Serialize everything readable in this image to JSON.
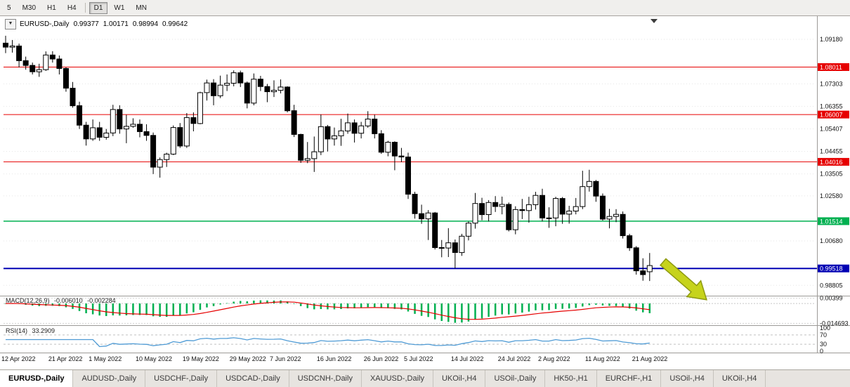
{
  "toolbar": {
    "timeframes": [
      "5",
      "M30",
      "H1",
      "H4",
      "D1",
      "W1",
      "MN"
    ],
    "active": "D1"
  },
  "header": {
    "dropdown_icon": "▼",
    "symbol": "EURUSD-,Daily",
    "open": "0.99377",
    "high": "1.00171",
    "low": "0.98994",
    "close": "0.99642"
  },
  "colors": {
    "resistance": "#e60000",
    "support_green": "#00b050",
    "support_blue": "#0000b4",
    "macd_histogram": "#00b050",
    "macd_signal": "#e60000",
    "rsi_line": "#4f9bd5",
    "bull": "#ffffff",
    "bear": "#000000",
    "grid": "#e6e6e6"
  },
  "objects": {
    "arrow": {
      "type": "arrow",
      "direction": "down-right",
      "color": "#c6d31c"
    }
  },
  "chart_data": {
    "type": "candlestick",
    "title": "EURUSD-,Daily",
    "symbol": "EURUSD-",
    "timeframe": "Daily",
    "ylim": [
      0.984,
      1.0995
    ],
    "price_ticks": [
      {
        "label": "1.09180",
        "value": 1.0918
      },
      {
        "label": "1.07303",
        "value": 1.07303
      },
      {
        "label": "1.06355",
        "value": 1.06355
      },
      {
        "label": "1.05407",
        "value": 1.05407
      },
      {
        "label": "1.04455",
        "value": 1.04455
      },
      {
        "label": "1.03505",
        "value": 1.03505
      },
      {
        "label": "1.02580",
        "value": 1.0258
      },
      {
        "label": "1.00680",
        "value": 1.0068
      },
      {
        "label": "0.98805",
        "value": 0.98805
      }
    ],
    "hlines": [
      {
        "value": 1.08011,
        "label": "1.08011",
        "kind": "resistance"
      },
      {
        "value": 1.06007,
        "label": "1.06007",
        "kind": "resistance"
      },
      {
        "value": 1.04016,
        "label": "1.04016",
        "kind": "resistance"
      },
      {
        "value": 1.01514,
        "label": "1.01514",
        "kind": "support_green"
      },
      {
        "value": 0.99518,
        "label": "0.99518",
        "kind": "support_blue"
      }
    ],
    "date_ticks": [
      {
        "bar": 0,
        "label": "12 Apr 2022"
      },
      {
        "bar": 7,
        "label": "21 Apr 2022"
      },
      {
        "bar": 13,
        "label": "1 May 2022"
      },
      {
        "bar": 20,
        "label": "10 May 2022"
      },
      {
        "bar": 27,
        "label": "19 May 2022"
      },
      {
        "bar": 34,
        "label": "29 May 2022"
      },
      {
        "bar": 40,
        "label": "7 Jun 2022"
      },
      {
        "bar": 47,
        "label": "16 Jun 2022"
      },
      {
        "bar": 54,
        "label": "26 Jun 2022"
      },
      {
        "bar": 60,
        "label": "5 Jul 2022"
      },
      {
        "bar": 67,
        "label": "14 Jul 2022"
      },
      {
        "bar": 74,
        "label": "24 Jul 2022"
      },
      {
        "bar": 80,
        "label": "2 Aug 2022"
      },
      {
        "bar": 87,
        "label": "11 Aug 2022"
      },
      {
        "bar": 94,
        "label": "21 Aug 2022"
      }
    ],
    "candles": [
      [
        1.0902,
        1.0933,
        1.086,
        1.0885
      ],
      [
        1.0885,
        1.0915,
        1.0862,
        1.089
      ],
      [
        1.089,
        1.09,
        1.08,
        1.0828
      ],
      [
        1.0828,
        1.0845,
        1.079,
        1.0808
      ],
      [
        1.0808,
        1.082,
        1.077,
        1.0781
      ],
      [
        1.0781,
        1.0815,
        1.076,
        1.079
      ],
      [
        1.079,
        1.0867,
        1.0785,
        1.0852
      ],
      [
        1.0852,
        1.0868,
        1.082,
        1.0835
      ],
      [
        1.0835,
        1.085,
        1.077,
        1.0795
      ],
      [
        1.0795,
        1.08,
        1.0697,
        1.0712
      ],
      [
        1.0712,
        1.0738,
        1.063,
        1.0638
      ],
      [
        1.0638,
        1.0655,
        1.054,
        1.0556
      ],
      [
        1.0556,
        1.057,
        1.047,
        1.0498
      ],
      [
        1.0498,
        1.058,
        1.049,
        1.0545
      ],
      [
        1.0545,
        1.057,
        1.049,
        1.0505
      ],
      [
        1.0505,
        1.054,
        1.0495,
        1.0523
      ],
      [
        1.0523,
        1.0642,
        1.051,
        1.0622
      ],
      [
        1.0622,
        1.064,
        1.052,
        1.054
      ],
      [
        1.054,
        1.06,
        1.048,
        1.0551
      ],
      [
        1.0551,
        1.0585,
        1.0545,
        1.056
      ],
      [
        1.056,
        1.058,
        1.0505,
        1.0529
      ],
      [
        1.0529,
        1.056,
        1.049,
        1.0513
      ],
      [
        1.0513,
        1.0525,
        1.035,
        1.0379
      ],
      [
        1.0379,
        1.042,
        1.0335,
        1.0411
      ],
      [
        1.0411,
        1.044,
        1.038,
        1.0434
      ],
      [
        1.0434,
        1.0555,
        1.043,
        1.0546
      ],
      [
        1.0546,
        1.0565,
        1.046,
        1.0468
      ],
      [
        1.0468,
        1.0607,
        1.046,
        1.0588
      ],
      [
        1.0588,
        1.061,
        1.053,
        1.0563
      ],
      [
        1.0563,
        1.0697,
        1.056,
        1.0693
      ],
      [
        1.0693,
        1.0748,
        1.066,
        1.0734
      ],
      [
        1.0734,
        1.075,
        1.064,
        1.068
      ],
      [
        1.068,
        1.0765,
        1.067,
        1.0725
      ],
      [
        1.0725,
        1.077,
        1.07,
        1.0733
      ],
      [
        1.0733,
        1.0787,
        1.072,
        1.0777
      ],
      [
        1.0777,
        1.0786,
        1.0717,
        1.0734
      ],
      [
        1.0734,
        1.074,
        1.0627,
        1.0649
      ],
      [
        1.0649,
        1.0774,
        1.064,
        1.075
      ],
      [
        1.075,
        1.0764,
        1.07,
        1.0719
      ],
      [
        1.0719,
        1.073,
        1.0653,
        1.0697
      ],
      [
        1.0697,
        1.0745,
        1.0675,
        1.0703
      ],
      [
        1.0703,
        1.0749,
        1.069,
        1.0717
      ],
      [
        1.0717,
        1.072,
        1.061,
        1.0617
      ],
      [
        1.0617,
        1.0642,
        1.0506,
        1.0517
      ],
      [
        1.0517,
        1.052,
        1.0397,
        1.0408
      ],
      [
        1.0408,
        1.0485,
        1.0396,
        1.0415
      ],
      [
        1.0415,
        1.0508,
        1.0359,
        1.0444
      ],
      [
        1.0444,
        1.0601,
        1.043,
        1.055
      ],
      [
        1.055,
        1.0557,
        1.0445,
        1.0498
      ],
      [
        1.0498,
        1.0546,
        1.047,
        1.0511
      ],
      [
        1.0511,
        1.0583,
        1.0469,
        1.0532
      ],
      [
        1.0532,
        1.0605,
        1.052,
        1.0566
      ],
      [
        1.0566,
        1.058,
        1.0483,
        1.0522
      ],
      [
        1.0522,
        1.057,
        1.05,
        1.0553
      ],
      [
        1.0553,
        1.0615,
        1.0545,
        1.0582
      ],
      [
        1.0582,
        1.06,
        1.05,
        1.052
      ],
      [
        1.052,
        1.0535,
        1.0435,
        1.0442
      ],
      [
        1.0442,
        1.049,
        1.0425,
        1.0484
      ],
      [
        1.0484,
        1.0488,
        1.0366,
        1.0426
      ],
      [
        1.0426,
        1.046,
        1.04,
        1.0422
      ],
      [
        1.0422,
        1.044,
        1.0245,
        1.0265
      ],
      [
        1.0265,
        1.0275,
        1.0162,
        1.0183
      ],
      [
        1.0183,
        1.0221,
        1.014,
        1.0161
      ],
      [
        1.0161,
        1.0198,
        1.0072,
        1.0186
      ],
      [
        1.0186,
        1.019,
        1.0032,
        1.004
      ],
      [
        1.004,
        1.0072,
        0.9999,
        1.0038
      ],
      [
        1.0038,
        1.0122,
        1.0,
        1.006
      ],
      [
        1.006,
        1.0074,
        0.9952,
        1.0019
      ],
      [
        1.0019,
        1.0098,
        1.0005,
        1.0088
      ],
      [
        1.0088,
        1.015,
        1.007,
        1.0143
      ],
      [
        1.0143,
        1.027,
        1.012,
        1.0226
      ],
      [
        1.0226,
        1.025,
        1.0155,
        1.0179
      ],
      [
        1.0179,
        1.024,
        1.015,
        1.023
      ],
      [
        1.023,
        1.0257,
        1.019,
        1.0213
      ],
      [
        1.0213,
        1.0255,
        1.018,
        1.0222
      ],
      [
        1.0222,
        1.023,
        1.0108,
        1.0115
      ],
      [
        1.0115,
        1.0214,
        1.0096,
        1.02
      ],
      [
        1.02,
        1.0245,
        1.016,
        1.0196
      ],
      [
        1.0196,
        1.0254,
        1.0145,
        1.0221
      ],
      [
        1.0221,
        1.0275,
        1.02,
        1.026
      ],
      [
        1.026,
        1.0288,
        1.015,
        1.0165
      ],
      [
        1.0165,
        1.021,
        1.0123,
        1.0165
      ],
      [
        1.0165,
        1.0254,
        1.013,
        1.0247
      ],
      [
        1.0247,
        1.0253,
        1.014,
        1.0181
      ],
      [
        1.0181,
        1.0216,
        1.0141,
        1.0194
      ],
      [
        1.0194,
        1.0249,
        1.018,
        1.0213
      ],
      [
        1.0213,
        1.0364,
        1.0202,
        1.0297
      ],
      [
        1.0297,
        1.0368,
        1.0276,
        1.0319
      ],
      [
        1.0319,
        1.0325,
        1.0233,
        1.0257
      ],
      [
        1.0257,
        1.0268,
        1.0154,
        1.016
      ],
      [
        1.016,
        1.0203,
        1.0121,
        1.0171
      ],
      [
        1.0171,
        1.0202,
        1.0147,
        1.018
      ],
      [
        1.018,
        1.0192,
        1.0078,
        1.009
      ],
      [
        1.009,
        1.0098,
        1.0026,
        1.0039
      ],
      [
        1.0039,
        1.0046,
        0.9926,
        0.9942
      ],
      [
        0.9942,
        0.9995,
        0.99,
        0.9926
      ],
      [
        0.9938,
        1.0017,
        0.9899,
        0.9964
      ]
    ],
    "indicators": {
      "macd": {
        "name": "MACD(12,26,9)",
        "fast": 12,
        "slow": 26,
        "signal": 9,
        "main_value": "-0.006010",
        "signal_value": "-0.002284",
        "ylim": [
          -0.015,
          0.0042
        ],
        "levels": [
          {
            "value": 0.00399,
            "label": "0.00399"
          },
          {
            "value": -0.014693,
            "label": "-0.014693"
          }
        ]
      },
      "rsi": {
        "name": "RSI(14)",
        "period": 14,
        "value": "33.2909",
        "levels": [
          {
            "value": 100,
            "label": "100"
          },
          {
            "value": 70,
            "label": "70"
          },
          {
            "value": 30,
            "label": "30"
          },
          {
            "value": 0,
            "label": "0"
          }
        ]
      }
    }
  },
  "tabs": [
    "EURUSD-,Daily",
    "AUDUSD-,Daily",
    "USDCHF-,Daily",
    "USDCAD-,Daily",
    "USDCNH-,Daily",
    "XAUUSD-,Daily",
    "UKOil-,H4",
    "USOil-,Daily",
    "HK50-,H1",
    "EURCHF-,H1",
    "USOil-,H4",
    "UKOil-,H4"
  ]
}
